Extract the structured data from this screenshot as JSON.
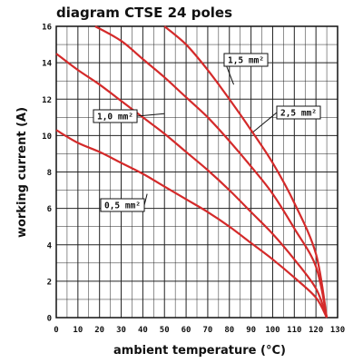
{
  "chart_data": {
    "type": "line",
    "title": "diagram CTSE 24 poles",
    "xlabel": "ambient temperature (°C)",
    "ylabel": "working current (A)",
    "xlim": [
      0,
      130
    ],
    "ylim": [
      0,
      16
    ],
    "x_ticks": [
      "0",
      "10",
      "20",
      "30",
      "40",
      "50",
      "60",
      "70",
      "80",
      "90",
      "100",
      "110",
      "120",
      "130"
    ],
    "y_ticks": [
      "0",
      "2",
      "4",
      "6",
      "8",
      "10",
      "12",
      "14",
      "16"
    ],
    "grid": true,
    "line_color": "#d42a2a",
    "series": [
      {
        "name": "0,5 mm²",
        "x": [
          0,
          10,
          20,
          30,
          40,
          50,
          60,
          70,
          80,
          90,
          100,
          110,
          120,
          125
        ],
        "y": [
          10.3,
          9.6,
          9.1,
          8.5,
          7.9,
          7.2,
          6.5,
          5.8,
          5.0,
          4.1,
          3.2,
          2.2,
          1.1,
          0
        ]
      },
      {
        "name": "1,0 mm²",
        "x": [
          0,
          10,
          20,
          30,
          40,
          50,
          60,
          70,
          80,
          90,
          100,
          110,
          120,
          125
        ],
        "y": [
          14.5,
          13.6,
          12.8,
          11.9,
          11.0,
          10.1,
          9.1,
          8.1,
          7.0,
          5.8,
          4.6,
          3.2,
          1.6,
          0
        ]
      },
      {
        "name": "2,5 mm²",
        "x": [
          18,
          30,
          40,
          50,
          60,
          70,
          80,
          90,
          100,
          110,
          120,
          125
        ],
        "y": [
          16,
          15.2,
          14.2,
          13.2,
          12.1,
          11.0,
          9.7,
          8.3,
          6.8,
          4.9,
          2.8,
          0
        ]
      },
      {
        "name": "1,5 mm²",
        "x": [
          50,
          60,
          70,
          80,
          90,
          100,
          110,
          120,
          125
        ],
        "y": [
          16,
          15.0,
          13.6,
          12.0,
          10.3,
          8.5,
          6.3,
          3.5,
          0
        ]
      }
    ]
  }
}
